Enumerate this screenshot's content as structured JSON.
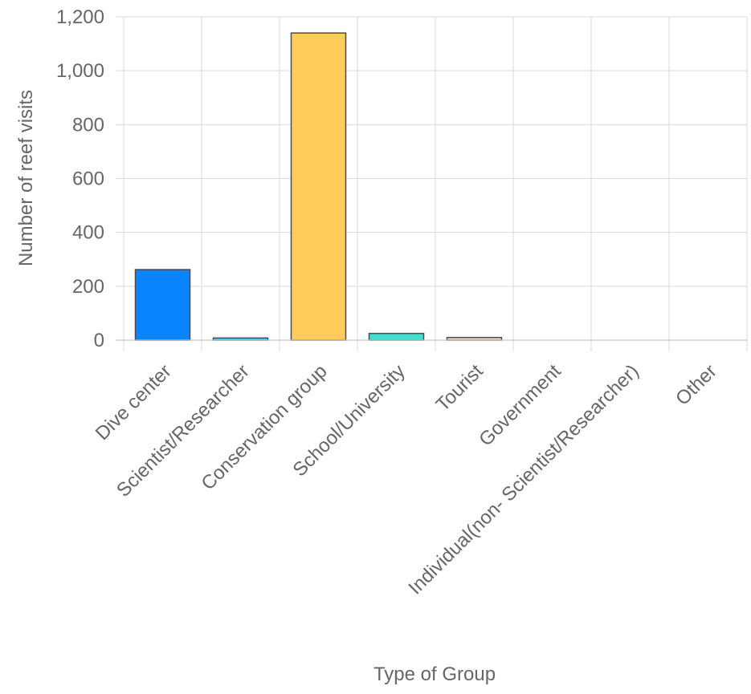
{
  "chart_data": {
    "type": "bar",
    "title": "",
    "xlabel": "Type of Group",
    "ylabel": "Number of reef visits",
    "categories": [
      "Dive center",
      "Scientist/Researcher",
      "Conservation group",
      "School/University",
      "Tourist",
      "Government",
      "Individual(non- Scientist/Researcher)",
      "Other"
    ],
    "values": [
      262,
      8,
      1140,
      25,
      10,
      0,
      0,
      0
    ],
    "colors": [
      "#0a84ff",
      "#5ac8fa",
      "#ffcc5c",
      "#40e0d0",
      "#f5d5b8",
      "#cccccc",
      "#cccccc",
      "#cccccc"
    ],
    "ylim": [
      0,
      1200
    ],
    "yticks": [
      0,
      200,
      400,
      600,
      800,
      1000,
      1200
    ],
    "ytick_labels": [
      "0",
      "200",
      "400",
      "600",
      "800",
      "1,000",
      "1,200"
    ],
    "grid": true,
    "legend": "none"
  }
}
